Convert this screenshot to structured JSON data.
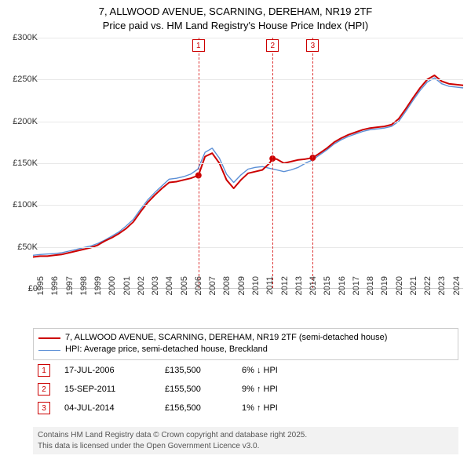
{
  "title": {
    "line1": "7, ALLWOOD AVENUE, SCARNING, DEREHAM, NR19 2TF",
    "line2": "Price paid vs. HM Land Registry's House Price Index (HPI)"
  },
  "chart": {
    "type": "line",
    "background_color": "#ffffff",
    "grid_color": "#e8e8e8",
    "axis_color": "#cccccc",
    "label_fontsize": 11,
    "xlim": [
      1995,
      2025
    ],
    "ylim": [
      0,
      300000
    ],
    "y_ticks": [
      0,
      50000,
      100000,
      150000,
      200000,
      250000,
      300000
    ],
    "y_tick_labels": [
      "£0",
      "£50K",
      "£100K",
      "£150K",
      "£200K",
      "£250K",
      "£300K"
    ],
    "x_ticks": [
      1995,
      1996,
      1997,
      1998,
      1999,
      2000,
      2001,
      2002,
      2003,
      2004,
      2005,
      2006,
      2007,
      2008,
      2009,
      2010,
      2011,
      2012,
      2013,
      2014,
      2015,
      2016,
      2017,
      2018,
      2019,
      2020,
      2021,
      2022,
      2023,
      2024
    ],
    "series": [
      {
        "id": "subject",
        "label": "7, ALLWOOD AVENUE, SCARNING, DEREHAM, NR19 2TF (semi-detached house)",
        "color": "#cc0000",
        "line_width": 2,
        "points": [
          [
            1995,
            38000
          ],
          [
            1995.5,
            39000
          ],
          [
            1996,
            39000
          ],
          [
            1996.5,
            40000
          ],
          [
            1997,
            41000
          ],
          [
            1997.5,
            43000
          ],
          [
            1998,
            45000
          ],
          [
            1998.5,
            47000
          ],
          [
            1999,
            49000
          ],
          [
            1999.5,
            52000
          ],
          [
            2000,
            57000
          ],
          [
            2000.5,
            61000
          ],
          [
            2001,
            66000
          ],
          [
            2001.5,
            72000
          ],
          [
            2002,
            80000
          ],
          [
            2002.5,
            92000
          ],
          [
            2003,
            103000
          ],
          [
            2003.5,
            112000
          ],
          [
            2004,
            120000
          ],
          [
            2004.5,
            127000
          ],
          [
            2005,
            128000
          ],
          [
            2005.5,
            130000
          ],
          [
            2006,
            132000
          ],
          [
            2006.54,
            135500
          ],
          [
            2007,
            158000
          ],
          [
            2007.5,
            162000
          ],
          [
            2008,
            150000
          ],
          [
            2008.5,
            130000
          ],
          [
            2009,
            120000
          ],
          [
            2009.5,
            130000
          ],
          [
            2010,
            138000
          ],
          [
            2010.5,
            140000
          ],
          [
            2011,
            142000
          ],
          [
            2011.5,
            150000
          ],
          [
            2011.71,
            155500
          ],
          [
            2012,
            155000
          ],
          [
            2012.5,
            150000
          ],
          [
            2013,
            152000
          ],
          [
            2013.5,
            154000
          ],
          [
            2014,
            155000
          ],
          [
            2014.51,
            156500
          ],
          [
            2015,
            162000
          ],
          [
            2015.5,
            168000
          ],
          [
            2016,
            175000
          ],
          [
            2016.5,
            180000
          ],
          [
            2017,
            184000
          ],
          [
            2017.5,
            187000
          ],
          [
            2018,
            190000
          ],
          [
            2018.5,
            192000
          ],
          [
            2019,
            193000
          ],
          [
            2019.5,
            194000
          ],
          [
            2020,
            196000
          ],
          [
            2020.5,
            203000
          ],
          [
            2021,
            215000
          ],
          [
            2021.5,
            228000
          ],
          [
            2022,
            240000
          ],
          [
            2022.5,
            250000
          ],
          [
            2023,
            255000
          ],
          [
            2023.5,
            248000
          ],
          [
            2024,
            245000
          ],
          [
            2024.5,
            244000
          ],
          [
            2025,
            243000
          ]
        ]
      },
      {
        "id": "hpi",
        "label": "HPI: Average price, semi-detached house, Breckland",
        "color": "#5b8fd6",
        "line_width": 1.4,
        "points": [
          [
            1995,
            40000
          ],
          [
            1995.5,
            41000
          ],
          [
            1996,
            41500
          ],
          [
            1996.5,
            42000
          ],
          [
            1997,
            43000
          ],
          [
            1997.5,
            45000
          ],
          [
            1998,
            47000
          ],
          [
            1998.5,
            49000
          ],
          [
            1999,
            51000
          ],
          [
            1999.5,
            54000
          ],
          [
            2000,
            58000
          ],
          [
            2000.5,
            63000
          ],
          [
            2001,
            68000
          ],
          [
            2001.5,
            75000
          ],
          [
            2002,
            83000
          ],
          [
            2002.5,
            95000
          ],
          [
            2003,
            106000
          ],
          [
            2003.5,
            115000
          ],
          [
            2004,
            123000
          ],
          [
            2004.5,
            131000
          ],
          [
            2005,
            132000
          ],
          [
            2005.5,
            134000
          ],
          [
            2006,
            137000
          ],
          [
            2006.5,
            143000
          ],
          [
            2007,
            163000
          ],
          [
            2007.5,
            168000
          ],
          [
            2008,
            156000
          ],
          [
            2008.5,
            137000
          ],
          [
            2009,
            127000
          ],
          [
            2009.5,
            136000
          ],
          [
            2010,
            143000
          ],
          [
            2010.5,
            145000
          ],
          [
            2011,
            146000
          ],
          [
            2011.5,
            144000
          ],
          [
            2012,
            142000
          ],
          [
            2012.5,
            140000
          ],
          [
            2013,
            142000
          ],
          [
            2013.5,
            145000
          ],
          [
            2014,
            150000
          ],
          [
            2014.5,
            154000
          ],
          [
            2015,
            160000
          ],
          [
            2015.5,
            166000
          ],
          [
            2016,
            173000
          ],
          [
            2016.5,
            178000
          ],
          [
            2017,
            182000
          ],
          [
            2017.5,
            185000
          ],
          [
            2018,
            188000
          ],
          [
            2018.5,
            190000
          ],
          [
            2019,
            191000
          ],
          [
            2019.5,
            192000
          ],
          [
            2020,
            194000
          ],
          [
            2020.5,
            200000
          ],
          [
            2021,
            212000
          ],
          [
            2021.5,
            225000
          ],
          [
            2022,
            237000
          ],
          [
            2022.5,
            247000
          ],
          [
            2023,
            252000
          ],
          [
            2023.5,
            245000
          ],
          [
            2024,
            242000
          ],
          [
            2024.5,
            241000
          ],
          [
            2025,
            240000
          ]
        ]
      }
    ],
    "event_lines": [
      {
        "num": "1",
        "x": 2006.54
      },
      {
        "num": "2",
        "x": 2011.71
      },
      {
        "num": "3",
        "x": 2014.51
      }
    ],
    "event_markers": [
      {
        "x": 2006.54,
        "y": 135500
      },
      {
        "x": 2011.71,
        "y": 155500
      },
      {
        "x": 2014.51,
        "y": 156500
      }
    ],
    "event_line_color": "#dd3333",
    "marker_color": "#cc0000",
    "marker_radius": 4
  },
  "legend": {
    "border_color": "#cccccc",
    "items": [
      {
        "color": "#cc0000",
        "width": 2,
        "label": "7, ALLWOOD AVENUE, SCARNING, DEREHAM, NR19 2TF (semi-detached house)"
      },
      {
        "color": "#5b8fd6",
        "width": 1.4,
        "label": "HPI: Average price, semi-detached house, Breckland"
      }
    ]
  },
  "events_table": {
    "rows": [
      {
        "num": "1",
        "date": "17-JUL-2006",
        "price": "£135,500",
        "delta": "6% ↓ HPI"
      },
      {
        "num": "2",
        "date": "15-SEP-2011",
        "price": "£155,500",
        "delta": "9% ↑ HPI"
      },
      {
        "num": "3",
        "date": "04-JUL-2014",
        "price": "£156,500",
        "delta": "1% ↑ HPI"
      }
    ]
  },
  "footer": {
    "line1": "Contains HM Land Registry data © Crown copyright and database right 2025.",
    "line2": "This data is licensed under the Open Government Licence v3.0."
  }
}
